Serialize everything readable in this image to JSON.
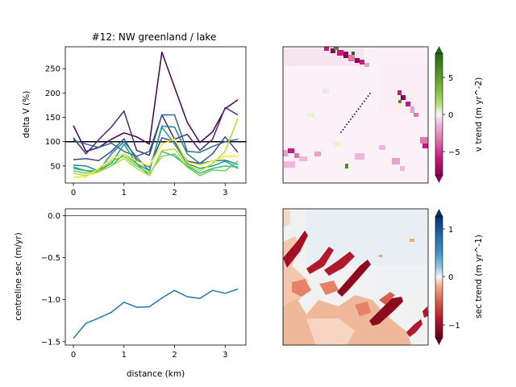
{
  "chart_data": [
    {
      "type": "line",
      "title": "#12: NW greenland / lake",
      "xlabel": "",
      "ylabel": "delta V (%)",
      "xlim": [
        -0.16,
        3.41
      ],
      "ylim": [
        15,
        295
      ],
      "x_ticks": [
        0,
        1,
        2,
        3
      ],
      "y_ticks": [
        50,
        100,
        150,
        200,
        250
      ],
      "x_tick_labels": [
        "0",
        "1",
        "2",
        "3"
      ],
      "y_tick_labels": [
        "50",
        "100",
        "150",
        "200",
        "250"
      ],
      "reference_line": {
        "y": 100,
        "color": "#000000"
      },
      "colormap_note": "lines colored by viridis, dark purple to yellow",
      "x": [
        0,
        0.25,
        0.5,
        0.75,
        1.0,
        1.25,
        1.5,
        1.75,
        2.0,
        2.25,
        2.5,
        2.75,
        3.0,
        3.25
      ],
      "series": [
        {
          "color": "#440154",
          "values": [
            133,
            80,
            88,
            105,
            118,
            110,
            95,
            284,
            212,
            140,
            98,
            120,
            168,
            186
          ]
        },
        {
          "color": "#482878",
          "values": [
            108,
            75,
            104,
            130,
            163,
            82,
            72,
            155,
            105,
            115,
            82,
            105,
            170,
            155
          ]
        },
        {
          "color": "#3e4989",
          "values": [
            63,
            65,
            61,
            80,
            106,
            62,
            48,
            108,
            100,
            60,
            55,
            75,
            110,
            78
          ]
        },
        {
          "color": "#31688e",
          "values": [
            103,
            95,
            88,
            97,
            80,
            70,
            80,
            155,
            155,
            80,
            78,
            90,
            100,
            105
          ]
        },
        {
          "color": "#26828e",
          "values": [
            52,
            50,
            40,
            75,
            100,
            68,
            40,
            132,
            130,
            75,
            55,
            60,
            62,
            53
          ]
        },
        {
          "color": "#1f9e89",
          "values": [
            48,
            40,
            40,
            55,
            95,
            55,
            40,
            130,
            95,
            55,
            45,
            50,
            60,
            45
          ]
        },
        {
          "color": "#35b779",
          "values": [
            45,
            40,
            38,
            50,
            75,
            55,
            30,
            80,
            70,
            50,
            35,
            45,
            50,
            48
          ]
        },
        {
          "color": "#6ece58",
          "values": [
            40,
            35,
            40,
            60,
            70,
            50,
            35,
            70,
            75,
            48,
            30,
            42,
            40,
            60
          ]
        },
        {
          "color": "#b5de2b",
          "values": [
            35,
            30,
            38,
            50,
            65,
            45,
            30,
            82,
            85,
            52,
            40,
            55,
            80,
            148
          ]
        },
        {
          "color": "#fde725",
          "values": [
            27,
            28,
            45,
            65,
            75,
            60,
            50,
            95,
            105,
            58,
            52,
            60,
            70,
            70
          ]
        }
      ]
    },
    {
      "type": "heatmap",
      "colorbar_label": "v trend (m yr^-2)",
      "colorbar_ticks": [
        "5",
        "0",
        "−5"
      ],
      "colorbar_range": [
        -8.5,
        8.5
      ],
      "colormap": "PiYG"
    },
    {
      "type": "line",
      "xlabel": "distance (km)",
      "ylabel": "centreline sec (m/yr)",
      "xlim": [
        -0.16,
        3.41
      ],
      "ylim": [
        -1.54,
        0.08
      ],
      "x_ticks": [
        0,
        1,
        2,
        3
      ],
      "y_ticks": [
        0.0,
        -0.5,
        -1.0,
        -1.5
      ],
      "x_tick_labels": [
        "0",
        "1",
        "2",
        "3"
      ],
      "y_tick_labels": [
        "0.0",
        "−0.5",
        "−1.0",
        "−1.5"
      ],
      "reference_line": {
        "y": 0,
        "color": "#000000"
      },
      "x": [
        0,
        0.25,
        0.5,
        0.75,
        1.0,
        1.25,
        1.5,
        1.75,
        2.0,
        2.25,
        2.5,
        2.75,
        3.0,
        3.25
      ],
      "series": [
        {
          "color": "#1f77b4",
          "values": [
            -1.46,
            -1.28,
            -1.22,
            -1.15,
            -1.03,
            -1.09,
            -1.085,
            -0.98,
            -0.89,
            -0.965,
            -0.985,
            -0.89,
            -0.925,
            -0.875
          ]
        }
      ]
    },
    {
      "type": "heatmap",
      "colorbar_label": "sec trend (m yr^-1)",
      "colorbar_ticks": [
        "1",
        "0",
        "−1"
      ],
      "colorbar_range": [
        -1.3,
        1.3
      ],
      "colormap": "RdBu"
    }
  ]
}
